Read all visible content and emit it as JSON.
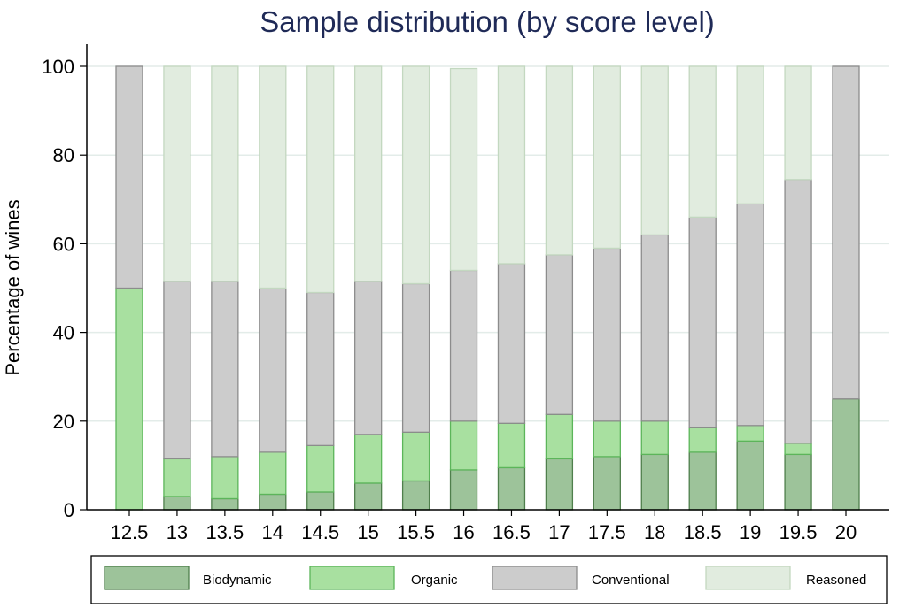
{
  "chart_data": {
    "type": "bar",
    "stacked": true,
    "title": "Sample distribution (by score level)",
    "xlabel": "",
    "ylabel": "Percentage of wines",
    "ylim": [
      0,
      100
    ],
    "yticks": [
      0,
      20,
      40,
      60,
      80,
      100
    ],
    "grid": true,
    "legend_position": "bottom",
    "categories": [
      "12.5",
      "13",
      "13.5",
      "14",
      "14.5",
      "15",
      "15.5",
      "16",
      "16.5",
      "17",
      "17.5",
      "18",
      "18.5",
      "19",
      "19.5",
      "20"
    ],
    "series": [
      {
        "name": "Biodynamic",
        "color": "#9dc39a",
        "stroke": "#4f7f4c",
        "values": [
          0,
          3,
          2.5,
          3.5,
          4,
          6,
          6.5,
          9,
          9.5,
          11.5,
          12,
          12.5,
          13,
          15.5,
          12.5,
          25
        ]
      },
      {
        "name": "Organic",
        "color": "#a8e0a0",
        "stroke": "#5cb55a",
        "values": [
          50,
          8.5,
          9.5,
          9.5,
          10.5,
          11,
          11,
          11,
          10,
          10,
          8,
          7.5,
          5.5,
          3.5,
          2.5,
          0
        ]
      },
      {
        "name": "Conventional",
        "color": "#cccccc",
        "stroke": "#8c8c8c",
        "values": [
          50,
          40,
          39.5,
          37,
          34.5,
          34.5,
          33.5,
          34,
          36,
          36,
          39,
          42,
          47.5,
          50,
          59.5,
          75
        ]
      },
      {
        "name": "Reasoned",
        "color": "#e1ecdf",
        "stroke": "#c3d8c0",
        "values": [
          0,
          48.5,
          48.5,
          50,
          51,
          48.5,
          49,
          45.5,
          44.5,
          42.5,
          41,
          38,
          34,
          31,
          25.5,
          0
        ]
      }
    ]
  }
}
